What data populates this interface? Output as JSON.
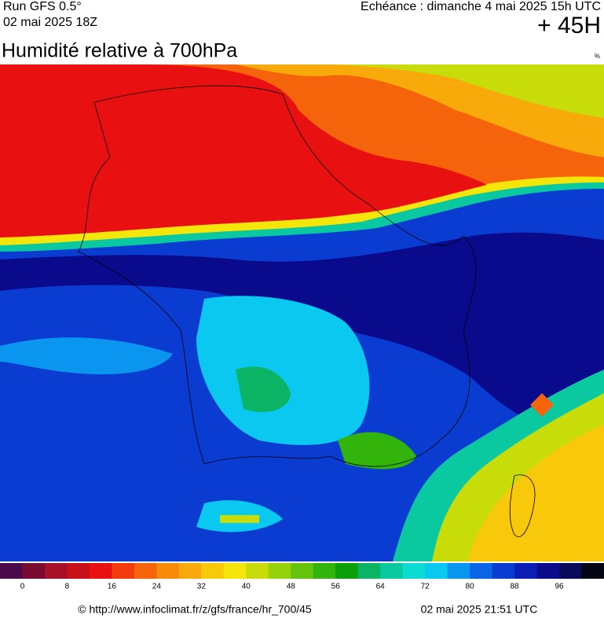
{
  "header": {
    "run": "Run GFS 0.5°",
    "run_date": "02 mai 2025 18Z",
    "forecast": "Echéance : dimanche 4 mai 2025 15h UTC",
    "lead": "+ 45H",
    "title": "Humidité relative à 700hPa",
    "unit": "%"
  },
  "colorbar": {
    "colors": [
      "#4a0a4a",
      "#7a0a30",
      "#a8102a",
      "#c81018",
      "#e81010",
      "#f23c0c",
      "#f5640a",
      "#f88c0a",
      "#f8aa0a",
      "#f8c80a",
      "#f5e60a",
      "#c8dc0a",
      "#96d20a",
      "#64c30a",
      "#32b40a",
      "#0aa00a",
      "#0ab464",
      "#0ac8a0",
      "#0adcd2",
      "#0ac8f0",
      "#0a96f0",
      "#0a64e6",
      "#0a3cd2",
      "#0a1eb4",
      "#0a0a8c",
      "#0a0a5a",
      "#050514"
    ],
    "ticks": [
      0,
      8,
      16,
      24,
      32,
      40,
      48,
      56,
      64,
      72,
      80,
      88,
      96
    ]
  },
  "footer": {
    "source": "© http://www.infoclimat.fr/z/gfs/france/hr_700/45",
    "generated": "02 mai 2025 21:51 UTC"
  }
}
